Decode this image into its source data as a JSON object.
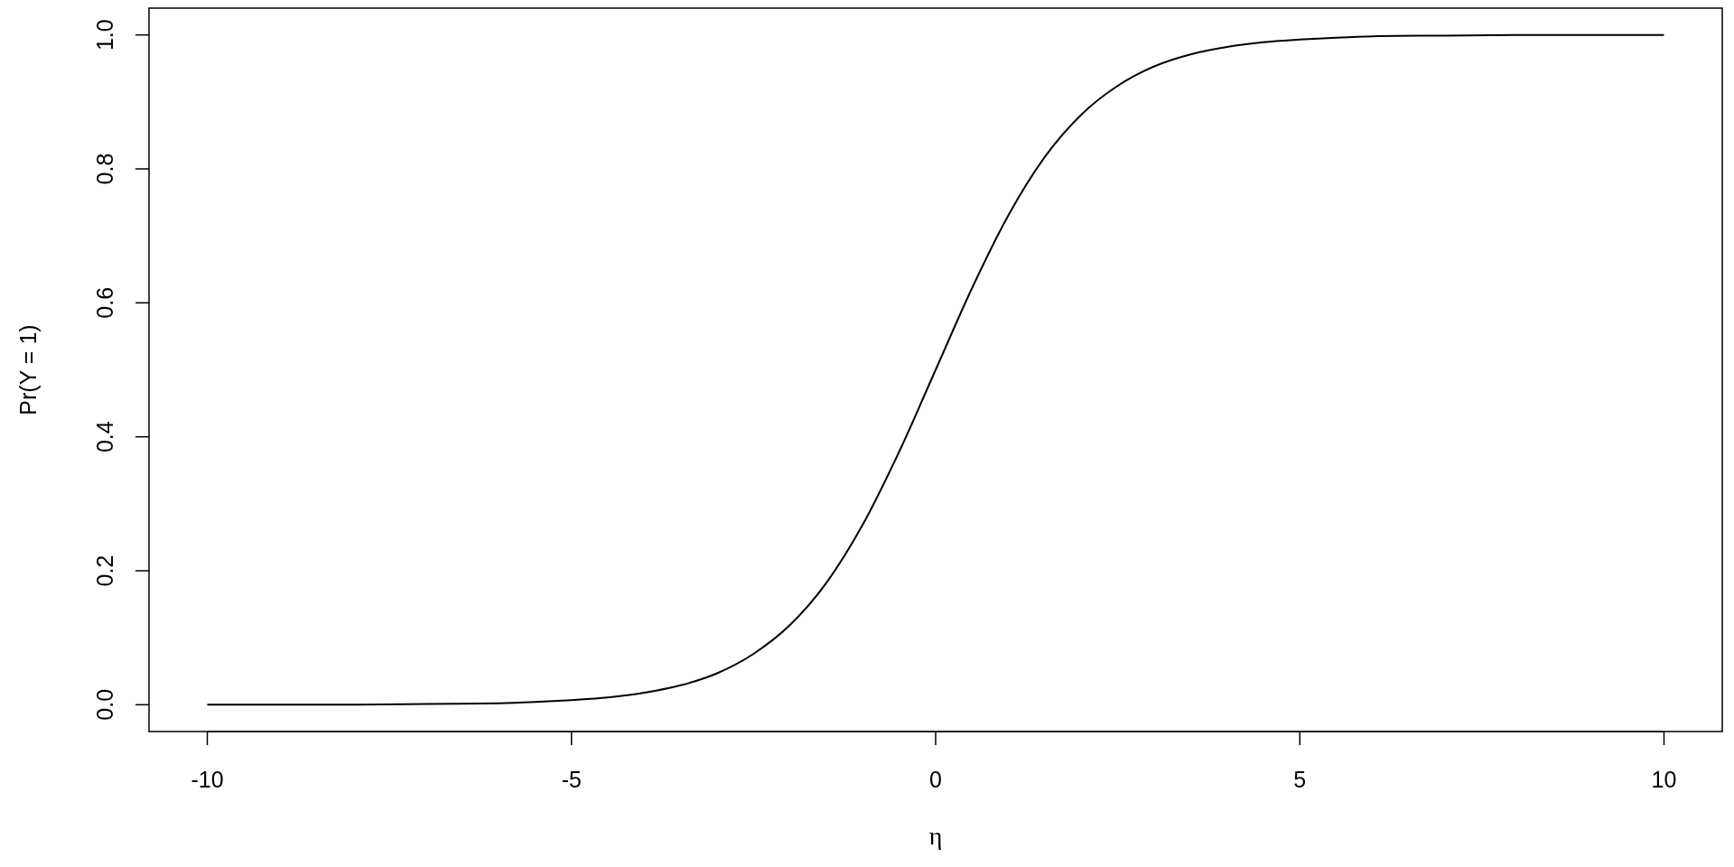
{
  "chart_data": {
    "type": "line",
    "xlabel": "η",
    "ylabel": "Pr(Y = 1)",
    "xlim": [
      -10.8,
      10.8
    ],
    "ylim": [
      -0.04,
      1.04
    ],
    "xticks": [
      -10,
      -5,
      0,
      5,
      10
    ],
    "yticks": [
      {
        "value": 0,
        "label": "0.0"
      },
      {
        "value": 0.2,
        "label": "0.2"
      },
      {
        "value": 0.4,
        "label": "0.4"
      },
      {
        "value": 0.6,
        "label": "0.6"
      },
      {
        "value": 0.8,
        "label": "0.8"
      },
      {
        "value": 1,
        "label": "1.0"
      }
    ],
    "grid": false,
    "marker": "none",
    "line_style": "solid",
    "series": [
      {
        "color": "#000000",
        "x": [
          -10,
          -9,
          -8,
          -7,
          -6,
          -5.5,
          -5,
          -4.5,
          -4,
          -3.5,
          -3,
          -2.5,
          -2,
          -1.5,
          -1,
          -0.5,
          0,
          0.5,
          1,
          1.5,
          2,
          2.5,
          3,
          3.5,
          4,
          4.5,
          5,
          5.5,
          6,
          7,
          8,
          9,
          10
        ],
        "values": [
          0.0,
          0.0,
          0.0,
          0.001,
          0.002,
          0.004,
          0.007,
          0.011,
          0.018,
          0.029,
          0.047,
          0.076,
          0.119,
          0.182,
          0.269,
          0.378,
          0.5,
          0.622,
          0.731,
          0.818,
          0.881,
          0.924,
          0.953,
          0.971,
          0.982,
          0.989,
          0.993,
          0.996,
          0.998,
          0.999,
          1.0,
          1.0,
          1.0
        ]
      }
    ]
  }
}
